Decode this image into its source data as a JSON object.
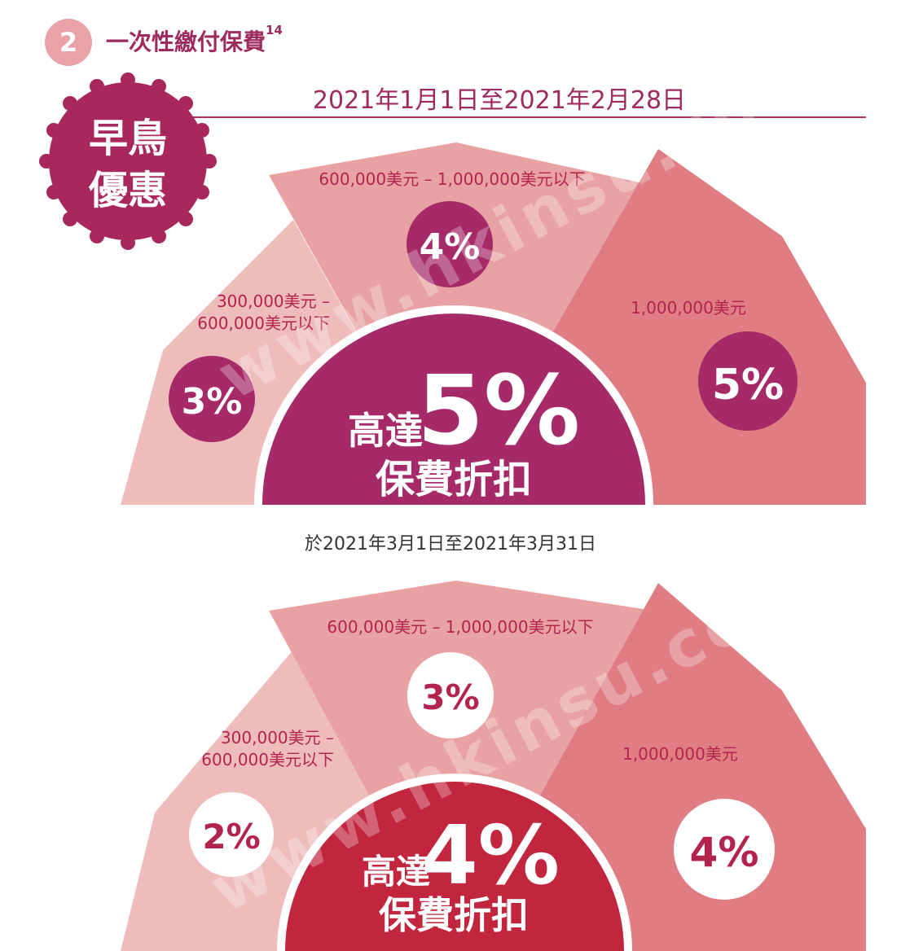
{
  "header": {
    "section_number": "2",
    "title": "一次性繳付保費",
    "title_superscript": "14"
  },
  "early_bird": {
    "period": "2021年1月1日至2021年2月28日",
    "badge_line1": "早鳥",
    "badge_line2": "優惠",
    "tiers": {
      "left_label_line1": "300,000美元 –",
      "left_label_line2": "600,000美元以下",
      "left_value": "3%",
      "middle_label": "600,000美元 – 1,000,000美元以下",
      "middle_value": "4%",
      "right_label": "1,000,000美元",
      "right_value": "5%"
    },
    "center_prefix": "高達",
    "center_value": "5%",
    "center_suffix": "保費折扣"
  },
  "march": {
    "period": "於2021年3月1日至2021年3月31日",
    "tiers": {
      "left_label_line1": "300,000美元 –",
      "left_label_line2": "600,000美元以下",
      "left_value": "2%",
      "middle_label": "600,000美元 – 1,000,000美元以下",
      "middle_value": "3%",
      "right_label": "1,000,000美元",
      "right_value": "4%"
    },
    "center_prefix": "高達",
    "center_value": "4%",
    "center_suffix": "保費折扣"
  },
  "watermark": "www.hkinsu.com",
  "colors": {
    "left_wedge": "#efbcbc",
    "middle_wedge": "#e9a2a3",
    "right_wedge": "#e07d83",
    "accent_purple": "#a62a67",
    "accent_red": "#c2263f",
    "label_text": "#b3244d"
  }
}
